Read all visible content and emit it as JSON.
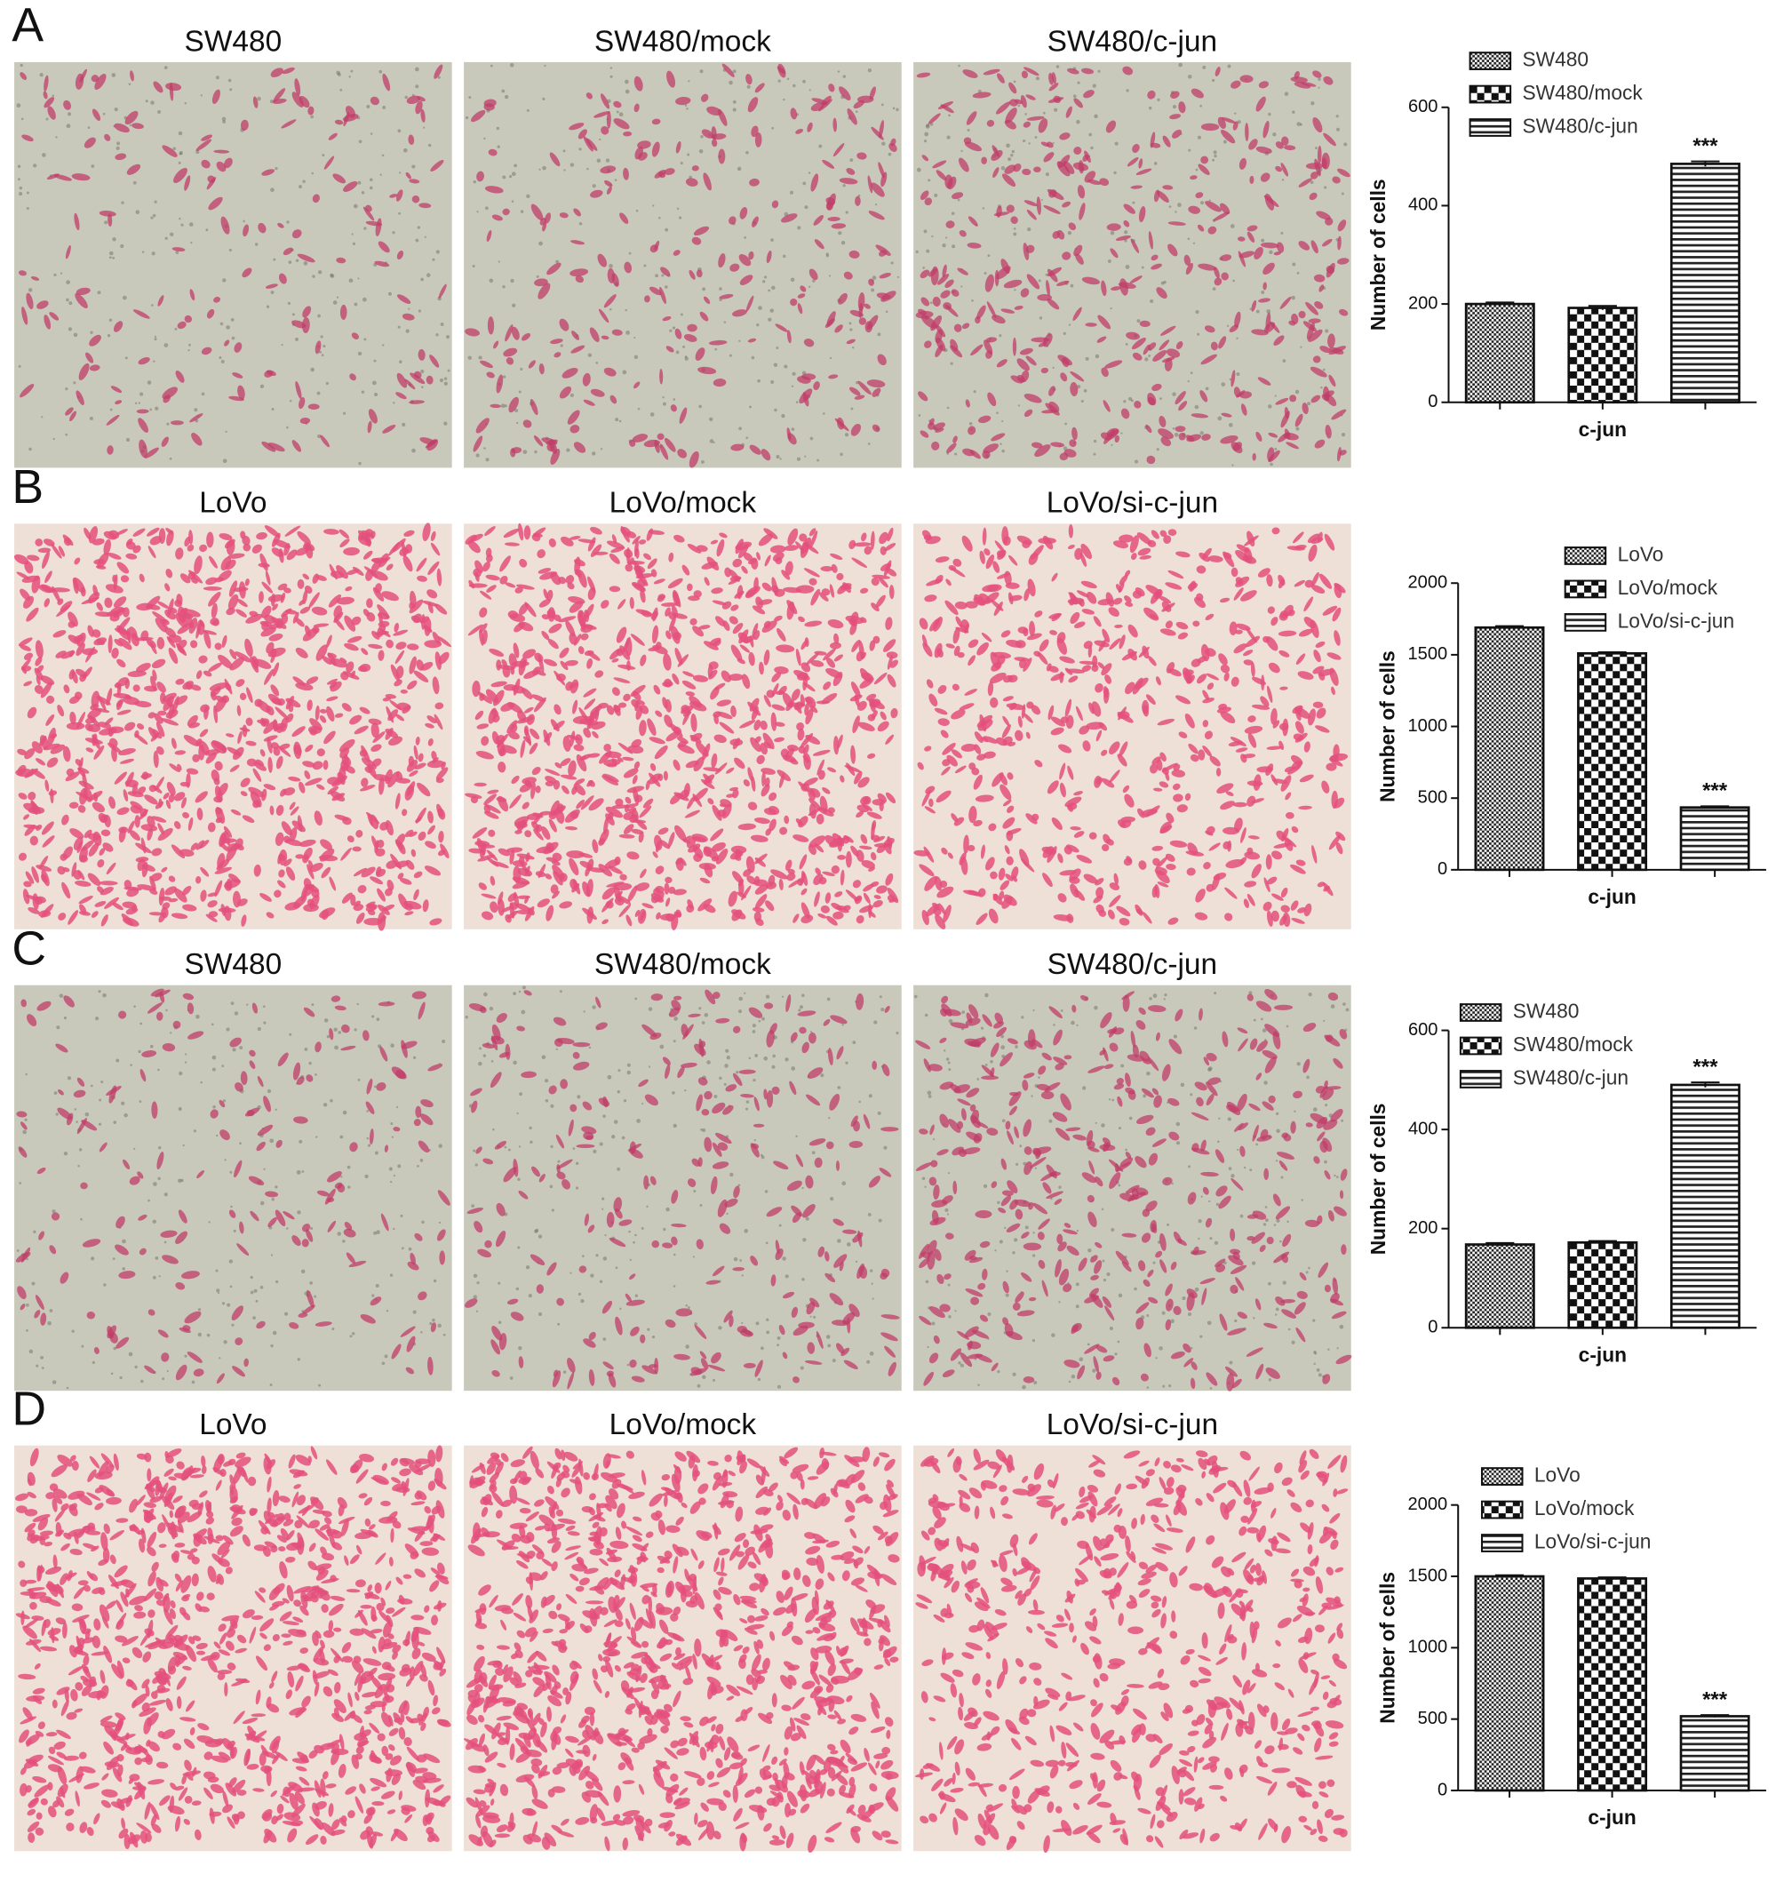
{
  "panels": [
    {
      "label": "A",
      "titles": [
        "SW480",
        "SW480/mock",
        "SW480/c-jun"
      ]
    },
    {
      "label": "B",
      "titles": [
        "LoVo",
        "LoVo/mock",
        "LoVo/si-c-jun"
      ]
    },
    {
      "label": "C",
      "titles": [
        "SW480",
        "SW480/mock",
        "SW480/c-jun"
      ]
    },
    {
      "label": "D",
      "titles": [
        "LoVo",
        "LoVo/mock",
        "LoVo/si-c-jun"
      ]
    }
  ],
  "chart_data": [
    {
      "type": "bar",
      "ylabel": "Number of cells",
      "categories": [
        "c-jun"
      ],
      "ylim": [
        0,
        600
      ],
      "yticks": [
        0,
        200,
        400,
        600
      ],
      "series": [
        {
          "name": "SW480",
          "pattern": "fine-check",
          "values": [
            200
          ],
          "errors": [
            3
          ]
        },
        {
          "name": "SW480/mock",
          "pattern": "checker",
          "values": [
            192
          ],
          "errors": [
            4
          ]
        },
        {
          "name": "SW480/c-jun",
          "pattern": "hlines",
          "values": [
            485
          ],
          "errors": [
            5
          ],
          "annotation": "***"
        }
      ]
    },
    {
      "type": "bar",
      "ylabel": "Number of cells",
      "categories": [
        "c-jun"
      ],
      "ylim": [
        0,
        2000
      ],
      "yticks": [
        0,
        500,
        1000,
        1500,
        2000
      ],
      "series": [
        {
          "name": "LoVo",
          "pattern": "fine-check",
          "values": [
            1690
          ],
          "errors": [
            10
          ]
        },
        {
          "name": "LoVo/mock",
          "pattern": "checker",
          "values": [
            1510
          ],
          "errors": [
            8
          ]
        },
        {
          "name": "LoVo/si-c-jun",
          "pattern": "hlines",
          "values": [
            435
          ],
          "errors": [
            8
          ],
          "annotation": "***"
        }
      ]
    },
    {
      "type": "bar",
      "ylabel": "Number of cells",
      "categories": [
        "c-jun"
      ],
      "ylim": [
        0,
        600
      ],
      "yticks": [
        0,
        200,
        400,
        600
      ],
      "series": [
        {
          "name": "SW480",
          "pattern": "fine-check",
          "values": [
            168
          ],
          "errors": [
            3
          ]
        },
        {
          "name": "SW480/mock",
          "pattern": "checker",
          "values": [
            172
          ],
          "errors": [
            3
          ]
        },
        {
          "name": "SW480/c-jun",
          "pattern": "hlines",
          "values": [
            490
          ],
          "errors": [
            5
          ],
          "annotation": "***"
        }
      ]
    },
    {
      "type": "bar",
      "ylabel": "Number of cells",
      "categories": [
        "c-jun"
      ],
      "ylim": [
        0,
        2000
      ],
      "yticks": [
        0,
        500,
        1000,
        1500,
        2000
      ],
      "series": [
        {
          "name": "LoVo",
          "pattern": "fine-check",
          "values": [
            1500
          ],
          "errors": [
            8
          ]
        },
        {
          "name": "LoVo/mock",
          "pattern": "checker",
          "values": [
            1485
          ],
          "errors": [
            8
          ]
        },
        {
          "name": "LoVo/si-c-jun",
          "pattern": "hlines",
          "values": [
            520
          ],
          "errors": [
            8
          ],
          "annotation": "***"
        }
      ]
    }
  ]
}
